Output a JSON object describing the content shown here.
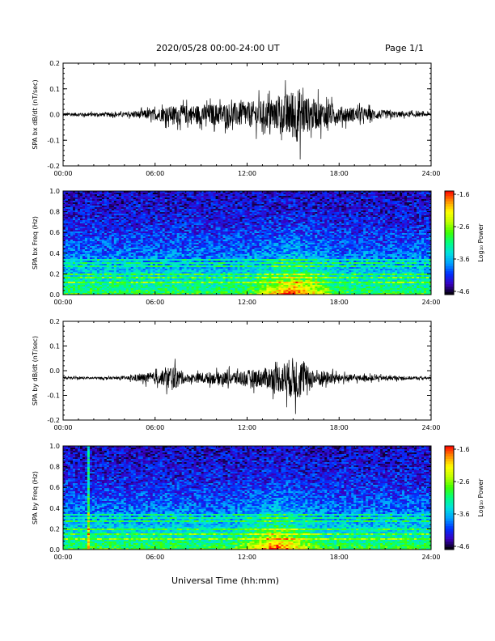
{
  "header": {
    "title": "2020/05/28  00:00-24:00 UT",
    "page": "Page 1/1"
  },
  "x_axis": {
    "label": "Universal Time (hh:mm)",
    "ticks": [
      "00:00",
      "06:00",
      "12:00",
      "18:00",
      "24:00"
    ]
  },
  "colorbar": {
    "label": "Log₁₀ Power",
    "ticks": [
      "-1.6",
      "-2.6",
      "-3.6",
      "-4.6"
    ],
    "colors": [
      "#000000",
      "#3a00c0",
      "#0030ff",
      "#00a0ff",
      "#00e0e0",
      "#00ff80",
      "#40ff00",
      "#c0ff00",
      "#ffff00",
      "#ff9000",
      "#ff0000"
    ]
  },
  "chart_data": [
    {
      "type": "line",
      "ylabel": "SPA bx dB/dt (nT/sec)",
      "xlim": [
        0,
        24
      ],
      "ylim": [
        -0.2,
        0.2
      ],
      "y_ticks": [
        "0.2",
        "0.1",
        "0.0",
        "-0.1",
        "-0.2"
      ],
      "baseline": 0.0,
      "envelope": [
        [
          0,
          0.012
        ],
        [
          4,
          0.015
        ],
        [
          6,
          0.04
        ],
        [
          7,
          0.06
        ],
        [
          9,
          0.07
        ],
        [
          12,
          0.09
        ],
        [
          14,
          0.11
        ],
        [
          15.3,
          0.2
        ],
        [
          16,
          0.12
        ],
        [
          18,
          0.06
        ],
        [
          20,
          0.04
        ],
        [
          22,
          0.02
        ],
        [
          24,
          0.012
        ]
      ]
    },
    {
      "type": "heatmap",
      "ylabel": "SPA bx Freq (Hz)",
      "xlim": [
        0,
        24
      ],
      "ylim": [
        0.0,
        1.0
      ],
      "y_ticks": [
        "1.0",
        "0.8",
        "0.6",
        "0.4",
        "0.2",
        "0.0"
      ],
      "power_range": [
        -4.6,
        -1.6
      ],
      "hot_spot_hours": [
        12,
        18
      ],
      "bright_lines_hz": [
        0.33,
        0.3,
        0.27,
        0.2,
        0.16,
        0.12
      ]
    },
    {
      "type": "line",
      "ylabel": "SPA by dB/dt (nT/sec)",
      "xlim": [
        0,
        24
      ],
      "ylim": [
        -0.2,
        0.2
      ],
      "y_ticks": [
        "0.2",
        "0.1",
        "0.0",
        "-0.1",
        "-0.2"
      ],
      "baseline": -0.03,
      "envelope": [
        [
          0,
          0.008
        ],
        [
          4,
          0.01
        ],
        [
          5,
          0.03
        ],
        [
          6.5,
          0.05
        ],
        [
          7,
          0.1
        ],
        [
          8,
          0.03
        ],
        [
          11,
          0.05
        ],
        [
          13,
          0.07
        ],
        [
          14,
          0.1
        ],
        [
          15.3,
          0.17
        ],
        [
          16,
          0.08
        ],
        [
          18,
          0.03
        ],
        [
          20,
          0.02
        ],
        [
          24,
          0.008
        ]
      ]
    },
    {
      "type": "heatmap",
      "ylabel": "SPA by Freq (Hz)",
      "xlim": [
        0,
        24
      ],
      "ylim": [
        0.0,
        1.0
      ],
      "y_ticks": [
        "1.0",
        "0.8",
        "0.6",
        "0.4",
        "0.2",
        "0.0"
      ],
      "power_range": [
        -4.6,
        -1.6
      ],
      "hot_spot_hours": [
        11,
        17
      ],
      "bright_lines_hz": [
        0.33,
        0.3,
        0.27,
        0.2,
        0.15,
        0.1
      ],
      "vertical_line_hour": 1.6
    }
  ]
}
